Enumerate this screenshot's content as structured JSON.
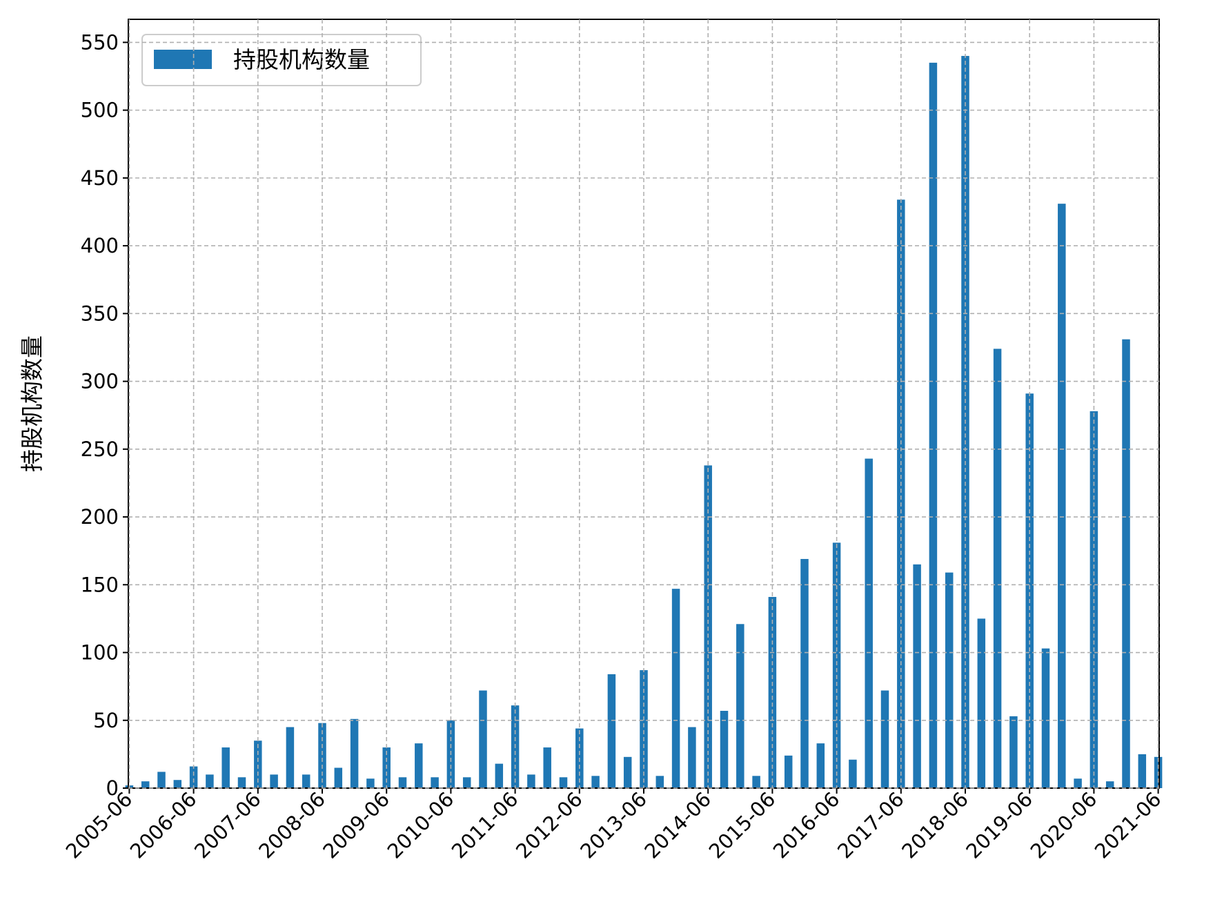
{
  "chart_data": {
    "type": "bar",
    "ylabel": "持股机构数量",
    "xlabel": "",
    "ylim": [
      0,
      567
    ],
    "yticks": [
      0,
      50,
      100,
      150,
      200,
      250,
      300,
      350,
      400,
      450,
      500,
      550
    ],
    "grid": true,
    "legend_position": "top-left",
    "colors": {
      "bar": "#1f77b4",
      "grid": "#b0b0b0",
      "axis": "#000000"
    },
    "categories": [
      "2005-06",
      "2005-09",
      "2005-12",
      "2006-03",
      "2006-06",
      "2006-09",
      "2006-12",
      "2007-03",
      "2007-06",
      "2007-09",
      "2007-12",
      "2008-03",
      "2008-06",
      "2008-09",
      "2008-12",
      "2009-03",
      "2009-06",
      "2009-09",
      "2009-12",
      "2010-03",
      "2010-06",
      "2010-09",
      "2010-12",
      "2011-03",
      "2011-06",
      "2011-09",
      "2011-12",
      "2012-03",
      "2012-06",
      "2012-09",
      "2012-12",
      "2013-03",
      "2013-06",
      "2013-09",
      "2013-12",
      "2014-03",
      "2014-06",
      "2014-09",
      "2014-12",
      "2015-03",
      "2015-06",
      "2015-09",
      "2015-12",
      "2016-03",
      "2016-06",
      "2016-09",
      "2016-12",
      "2017-03",
      "2017-06",
      "2017-09",
      "2017-12",
      "2018-03",
      "2018-06",
      "2018-09",
      "2018-12",
      "2019-03",
      "2019-06",
      "2019-09",
      "2019-12",
      "2020-03",
      "2020-06",
      "2020-09",
      "2020-12",
      "2021-03",
      "2021-06"
    ],
    "tick_labels": [
      "2005-06",
      "2006-06",
      "2007-06",
      "2008-06",
      "2009-06",
      "2010-06",
      "2011-06",
      "2012-06",
      "2013-06",
      "2014-06",
      "2015-06",
      "2016-06",
      "2017-06",
      "2018-06",
      "2019-06",
      "2020-06",
      "2021-06"
    ],
    "series": [
      {
        "name": "持股机构数量",
        "values": [
          2,
          5,
          12,
          6,
          16,
          10,
          30,
          8,
          35,
          10,
          45,
          10,
          48,
          15,
          51,
          7,
          30,
          8,
          33,
          8,
          50,
          8,
          72,
          18,
          61,
          10,
          30,
          8,
          44,
          9,
          84,
          23,
          87,
          9,
          147,
          45,
          238,
          57,
          121,
          9,
          141,
          24,
          169,
          33,
          181,
          21,
          243,
          72,
          434,
          165,
          535,
          159,
          540,
          125,
          324,
          53,
          291,
          103,
          431,
          7,
          278,
          5,
          331,
          25,
          23
        ]
      }
    ]
  }
}
